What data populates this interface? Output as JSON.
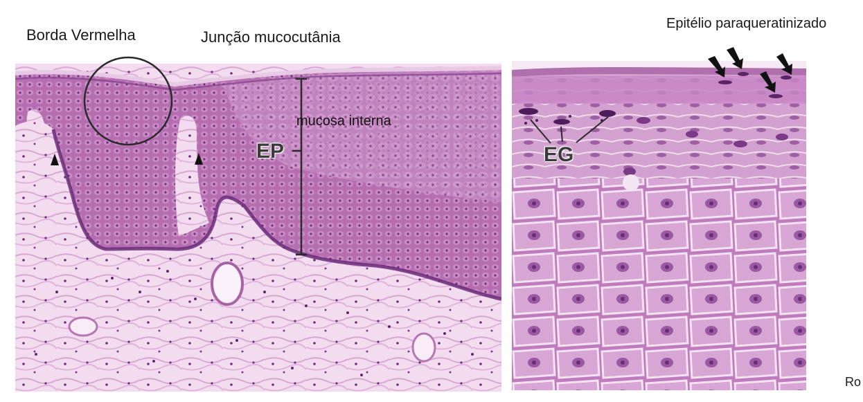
{
  "labels": {
    "borda_vermelha": "Borda Vermelha",
    "juncao_mucocutania": "Junção mucocutânia",
    "epitelio_paraqueratinizado": "Epitélio paraqueratinizado",
    "mucosa_interna": "mucosa interna",
    "ep": "EP",
    "eg": "EG",
    "ro": "Ro"
  },
  "colors": {
    "epithelium": "#b86bb3",
    "basal_layer": "#7a3a86",
    "connective_tissue": "#f2d7ee",
    "nuclei": "#5a2a6a",
    "annotation": "#2a2a2a"
  },
  "icons": {
    "arrowhead": "arrowhead-marker-icon",
    "arrow": "black-arrow-icon",
    "circle": "region-circle-icon",
    "scale_bracket": "vertical-bracket-icon"
  }
}
